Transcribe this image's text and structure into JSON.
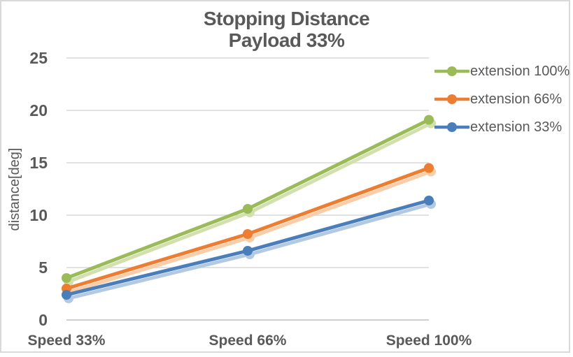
{
  "window": {
    "background": "#ffffff",
    "border_color": "#d9d9d9"
  },
  "chart_data": {
    "type": "line",
    "title": "Stopping Distance",
    "subtitle": "Payload 33%",
    "ylabel": "distance[deg]",
    "xlabel": "",
    "ylim": [
      0,
      25
    ],
    "yticks": [
      0,
      5,
      10,
      15,
      20,
      25
    ],
    "grid": true,
    "legend_position": "right",
    "categories": [
      "Speed 33%",
      "Speed 66%",
      "Speed 100%"
    ],
    "series": [
      {
        "name": "extension 100%",
        "color": "#9bbb59",
        "shadow_color": "#d2e0ae",
        "values": [
          4.0,
          10.6,
          19.1
        ]
      },
      {
        "name": "extension 66%",
        "color": "#ed7d31",
        "shadow_color": "#f8cda8",
        "values": [
          3.0,
          8.2,
          14.5
        ]
      },
      {
        "name": "extension 33%",
        "color": "#4a7ebb",
        "shadow_color": "#b3c9e2",
        "values": [
          2.4,
          6.6,
          11.4
        ]
      }
    ],
    "style": {
      "text_color": "#595959",
      "grid_color": "#d9d9d9",
      "axis_color": "#bfbfbf",
      "marker": "circle",
      "line_width": 5,
      "marker_radius": 7,
      "shadow_offset_x": 3,
      "shadow_offset_y": 5
    }
  }
}
